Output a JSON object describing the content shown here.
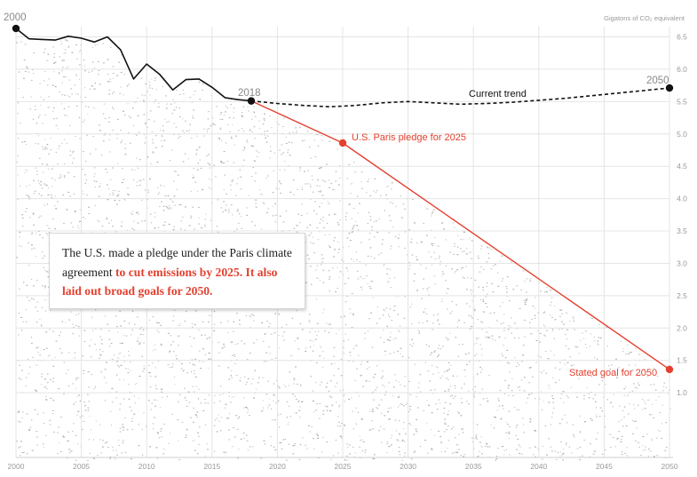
{
  "chart_data": {
    "type": "line",
    "title": "",
    "unit_label": "Gigatons of CO₂ equivalent",
    "xlim": [
      2000,
      2050
    ],
    "ylim": [
      0,
      6.6
    ],
    "x_ticks": [
      2000,
      2005,
      2010,
      2015,
      2020,
      2025,
      2030,
      2035,
      2040,
      2045,
      2050
    ],
    "y_ticks": [
      "1.0",
      "1.5",
      "2.0",
      "2.5",
      "3.0",
      "3.5",
      "4.0",
      "4.5",
      "5.0",
      "5.5",
      "6.0",
      "6.5"
    ],
    "grid": true,
    "series": [
      {
        "style": "historical",
        "color": "#111111",
        "x": [
          2000,
          2001,
          2002,
          2003,
          2004,
          2005,
          2006,
          2007,
          2008,
          2009,
          2010,
          2011,
          2012,
          2013,
          2014,
          2015,
          2016,
          2017,
          2018
        ],
        "y": [
          6.63,
          6.47,
          6.46,
          6.45,
          6.51,
          6.48,
          6.42,
          6.5,
          6.3,
          5.85,
          6.08,
          5.92,
          5.68,
          5.84,
          5.85,
          5.72,
          5.56,
          5.53,
          5.51
        ]
      },
      {
        "name": "Current trend",
        "style": "dashed",
        "color": "#111111",
        "x": [
          2018,
          2020,
          2022,
          2024,
          2026,
          2028,
          2030,
          2032,
          2034,
          2036,
          2038,
          2040,
          2042,
          2044,
          2046,
          2048,
          2050
        ],
        "y": [
          5.51,
          5.47,
          5.44,
          5.42,
          5.44,
          5.48,
          5.5,
          5.48,
          5.46,
          5.47,
          5.49,
          5.52,
          5.55,
          5.59,
          5.63,
          5.67,
          5.71
        ]
      },
      {
        "name": "U.S. Paris pledge",
        "style": "solid",
        "color": "#e4402f",
        "x": [
          2018,
          2025,
          2050
        ],
        "y": [
          5.51,
          4.86,
          1.36
        ]
      }
    ],
    "points": [
      {
        "label": "2000",
        "x": 2000,
        "y": 6.63,
        "color": "#111111"
      },
      {
        "label": "2018",
        "x": 2018,
        "y": 5.51,
        "color": "#111111"
      },
      {
        "label": "2050",
        "x": 2050,
        "y": 5.71,
        "color": "#111111"
      },
      {
        "label": "U.S. Paris pledge for 2025",
        "x": 2025,
        "y": 4.86,
        "color": "#e4402f"
      },
      {
        "label": "Stated goal for 2050",
        "x": 2050,
        "y": 1.36,
        "color": "#e4402f"
      }
    ],
    "annotations": {
      "current_trend": "Current trend",
      "pledge_2025": "U.S. Paris pledge for 2025",
      "goal_2050": "Stated goal for 2050",
      "start_year": "2000",
      "mid_year": "2018",
      "end_year": "2050"
    },
    "colors": {
      "accent": "#e4402f",
      "line": "#111111",
      "grid": "#e4e4e4",
      "dots": "#9a9a9a"
    }
  },
  "callout": {
    "text_plain": "The U.S. made a pledge under the Paris climate agreement",
    "text_highlight": "to cut emissions by 2025. It also laid out broad goals for 2050."
  }
}
